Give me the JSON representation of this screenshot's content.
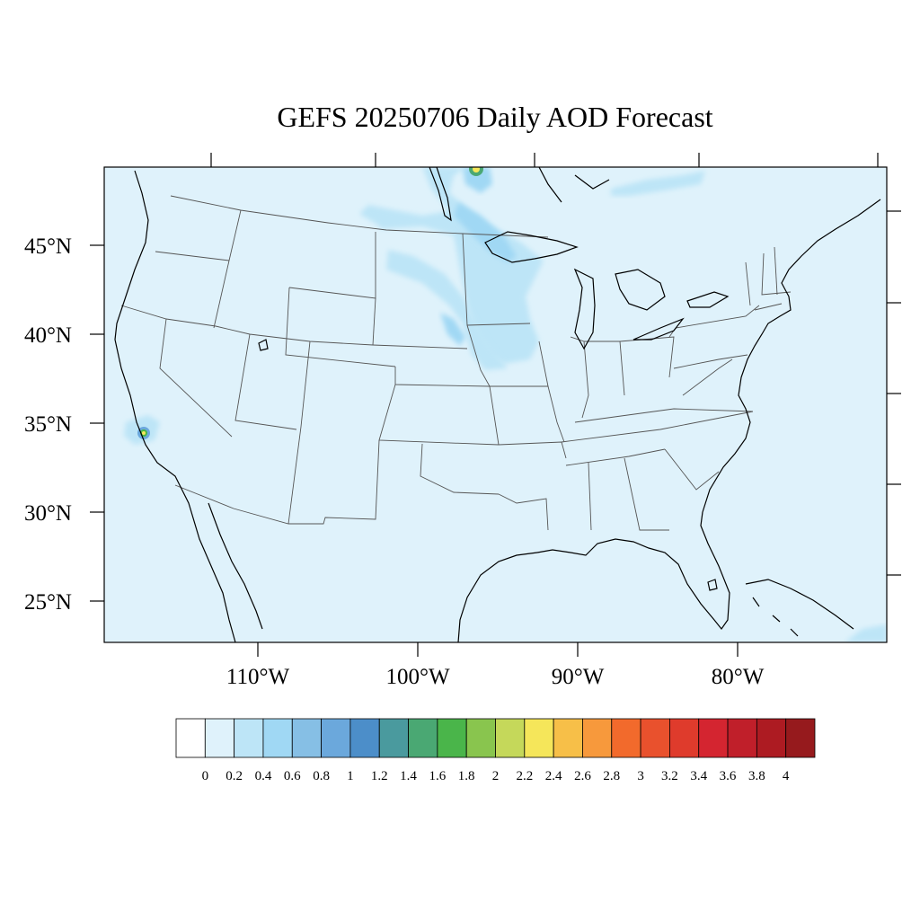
{
  "title": "GEFS 20250706 Daily AOD Forecast",
  "map": {
    "region": "Continental United States",
    "projection": "Lambert conformal",
    "background_color": "#dff2fb"
  },
  "lat_labels": [
    "45°N",
    "40°N",
    "35°N",
    "30°N",
    "25°N"
  ],
  "lon_labels": [
    "110°W",
    "100°W",
    "90°W",
    "80°W"
  ],
  "colorbar": {
    "colors": [
      "#ffffff",
      "#dff2fb",
      "#bde5f7",
      "#a0d8f4",
      "#86bfe5",
      "#6ba8dc",
      "#4c8ec9",
      "#4a9a9e",
      "#4aa873",
      "#4ab54a",
      "#89c54e",
      "#c5d85a",
      "#f5e65a",
      "#f7bf48",
      "#f7993c",
      "#f26a2c",
      "#e9512d",
      "#df3b2c",
      "#d42530",
      "#c01f2a",
      "#ad1b22",
      "#961a1d"
    ],
    "labels": [
      "0",
      "0.2",
      "0.4",
      "0.6",
      "0.8",
      "1",
      "1.2",
      "1.4",
      "1.6",
      "1.8",
      "2",
      "2.2",
      "2.4",
      "2.6",
      "2.8",
      "3",
      "3.2",
      "3.4",
      "3.6",
      "3.8",
      "4"
    ]
  }
}
